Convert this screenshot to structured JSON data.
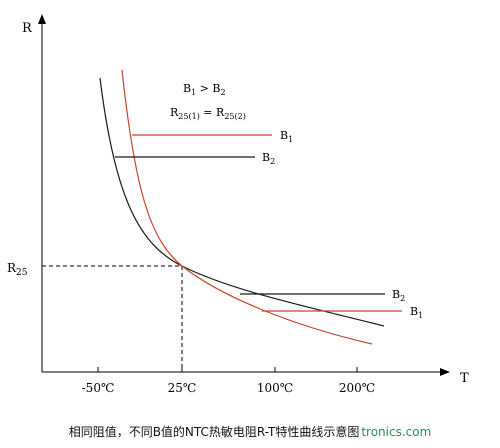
{
  "chart_data": {
    "type": "line",
    "xlabel": "T",
    "ylabel": "R",
    "x_ticks": [
      "-50℃",
      "25℃",
      "100℃",
      "200℃"
    ],
    "y_ticks": [
      "R25"
    ],
    "annotation_line1": "B₁ > B₂",
    "annotation_line2": "R25(1) = R25(2)",
    "series": [
      {
        "name": "B₁",
        "color": "#c8452a"
      },
      {
        "name": "B₂",
        "color": "#1a1a1a"
      }
    ],
    "label_b1": "B₁",
    "label_b2": "B₂",
    "grid": false
  },
  "caption": {
    "text": "相同阻值，不同B值的NTC热敏电阻R-T特性曲线示意图",
    "watermark": "tronics.com"
  }
}
